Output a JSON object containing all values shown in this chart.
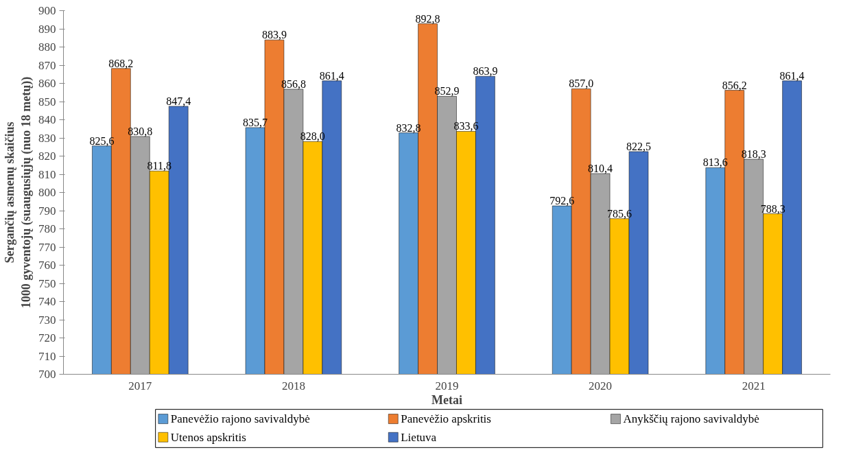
{
  "chart_data": {
    "type": "bar",
    "xlabel": "Metai",
    "ylabel": "Sergančių asmenų skaičius\n1000 gyventojų (suaugusiųjų (nuo 18 metų))",
    "categories": [
      "2017",
      "2018",
      "2019",
      "2020",
      "2021"
    ],
    "series": [
      {
        "name": "Panevėžio rajono savivaldybė",
        "color": "#5b9bd5",
        "values": [
          825.6,
          835.7,
          832.8,
          792.6,
          813.6
        ],
        "value_labels": [
          "825,6",
          "835,7",
          "832,8",
          "792,6",
          "813,6"
        ]
      },
      {
        "name": "Panevėžio apskritis",
        "color": "#ed7d31",
        "values": [
          868.2,
          883.9,
          892.8,
          857.0,
          856.2
        ],
        "value_labels": [
          "868,2",
          "883,9",
          "892,8",
          "857,0",
          "856,2"
        ]
      },
      {
        "name": "Anykščių rajono savivaldybė",
        "color": "#a5a5a5",
        "values": [
          830.8,
          856.8,
          852.9,
          810.4,
          818.3
        ],
        "value_labels": [
          "830,8",
          "856,8",
          "852,9",
          "810,4",
          "818,3"
        ]
      },
      {
        "name": "Utenos apskritis",
        "color": "#ffc000",
        "values": [
          811.8,
          828.0,
          833.6,
          785.6,
          788.3
        ],
        "value_labels": [
          "811,8",
          "828,0",
          "833,6",
          "785,6",
          "788,3"
        ]
      },
      {
        "name": "Lietuva",
        "color": "#4472c4",
        "values": [
          847.4,
          861.4,
          863.9,
          822.5,
          861.4
        ],
        "value_labels": [
          "847,4",
          "861,4",
          "863,9",
          "822,5",
          "861,4"
        ]
      }
    ],
    "ylim": [
      700,
      900
    ],
    "yticks": [
      700,
      710,
      720,
      730,
      740,
      750,
      760,
      770,
      780,
      790,
      800,
      810,
      820,
      830,
      840,
      850,
      860,
      870,
      880,
      890,
      900
    ],
    "grid": false,
    "legend": "bottom"
  }
}
